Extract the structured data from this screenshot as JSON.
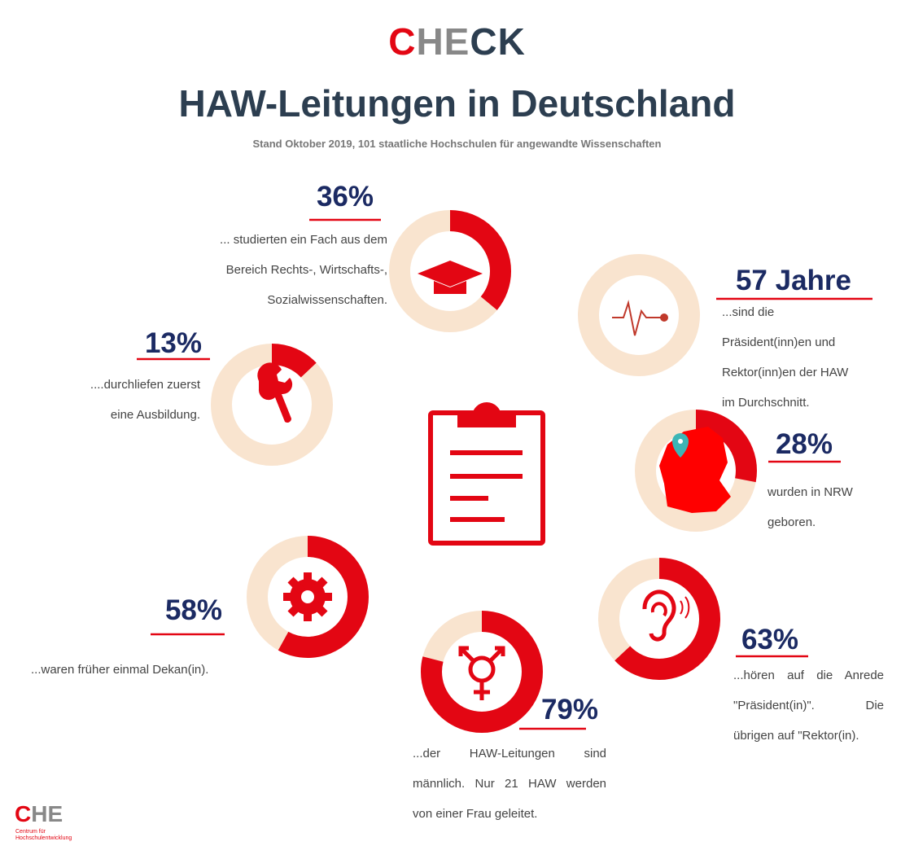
{
  "brand": [
    "C",
    "HE",
    "CK"
  ],
  "title": "HAW-Leitungen in Deutschland",
  "subtitle": "Stand Oktober 2019, 101 staatliche Hochschulen für angewandte Wissenschaften",
  "items": [
    {
      "percent": 36,
      "label": "36%",
      "lines": [
        "... studierten ein Fach aus dem",
        "Bereich Rechts-, Wirtschafts-,",
        "Sozialwissenschaften."
      ]
    },
    {
      "label": "57 Jahre",
      "lines": [
        "...sind die",
        "Präsident(inn)en und",
        "Rektor(inn)en der HAW",
        "im Durchschnitt."
      ]
    },
    {
      "percent": 13,
      "label": "13%",
      "lines": [
        "....durchliefen zuerst",
        "eine Ausbildung."
      ]
    },
    {
      "percent": 28,
      "label": "28%",
      "lines": [
        "wurden in NRW",
        "geboren."
      ]
    },
    {
      "percent": 58,
      "label": "58%",
      "lines": [
        "...waren früher einmal Dekan(in)."
      ]
    },
    {
      "percent": 63,
      "label": "63%",
      "lines": [
        "...hören auf die Anrede",
        "\"Präsident(in)\".       Die",
        "übrigen auf \"Rektor(in)."
      ]
    },
    {
      "percent": 79,
      "label": "79%",
      "lines": [
        "...der HAW-Leitungen sind",
        "männlich. Nur 21 HAW werden",
        "von einer Frau geleitet."
      ]
    }
  ],
  "footer": {
    "logo": [
      "C",
      "HE"
    ],
    "lines": [
      "Centrum für",
      "Hochschulentwicklung"
    ]
  }
}
